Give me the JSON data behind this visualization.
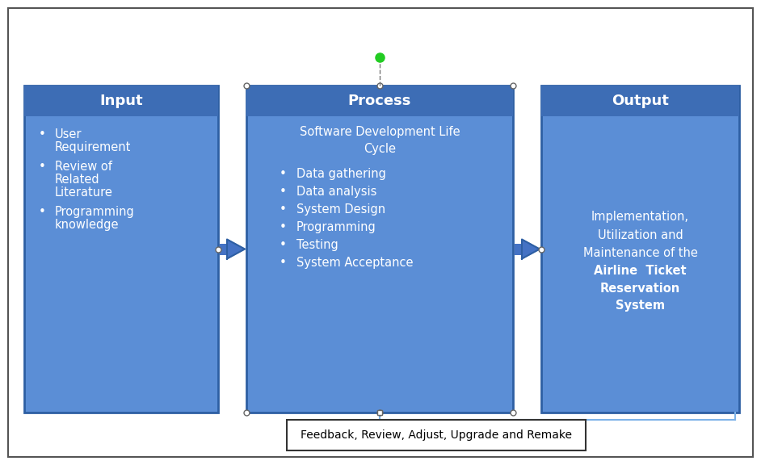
{
  "bg_color": "#ffffff",
  "outer_border_color": "#555555",
  "box_fill_color": "#5B8ED6",
  "box_edge_color": "#2E5FA3",
  "box_title_color": "#ffffff",
  "box_text_color": "#ffffff",
  "feedback_box_color": "#ffffff",
  "feedback_text_color": "#000000",
  "feedback_border_color": "#333333",
  "arrow_color": "#4472C4",
  "arrow_edge_color": "#2E5FA3",
  "connector_color": "#7EB3E8",
  "input_title": "Input",
  "process_title": "Process",
  "output_title": "Output",
  "input_bullet_items": [
    "User\nRequirement",
    "Review of\nRelated\nLiterature",
    "Programming\nknowledge"
  ],
  "process_subtitle": "Software Development Life\nCycle",
  "process_bullet_items": [
    "Data gathering",
    "Data analysis",
    "System Design",
    "Programming",
    "Testing",
    "System Acceptance"
  ],
  "output_lines_normal": [
    "Implementation,",
    "Utilization and",
    "Maintenance of the"
  ],
  "output_lines_bold": [
    "Airline  Ticket",
    "Reservation",
    "System"
  ],
  "feedback_text": "Feedback, Review, Adjust, Upgrade and Remake",
  "fig_width": 9.42,
  "fig_height": 5.76,
  "dpi": 100
}
